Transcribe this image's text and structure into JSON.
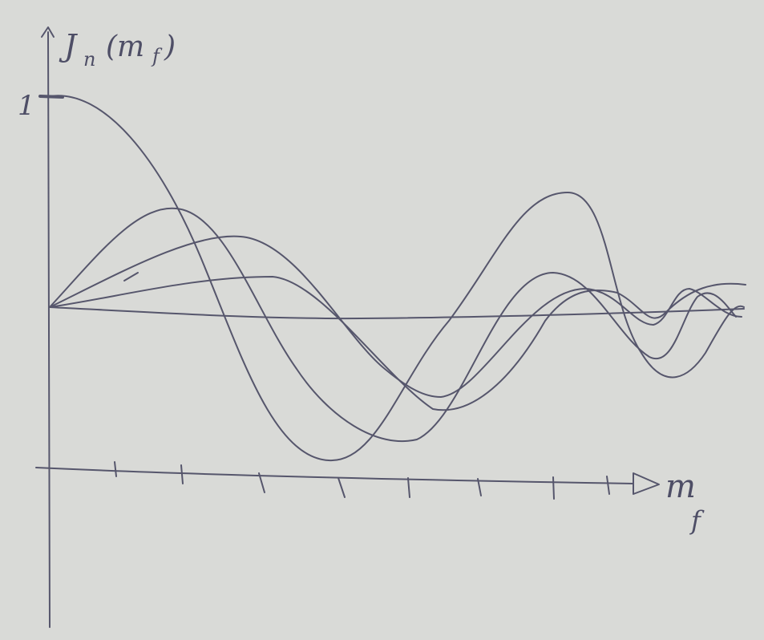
{
  "y_axis": {
    "symbol": "J",
    "subscript": "n",
    "argument_open": "(m",
    "argument_subscript": "f",
    "argument_close": ")",
    "tick_label": "1"
  },
  "x_axis": {
    "symbol": "m",
    "subscript": "f"
  }
}
